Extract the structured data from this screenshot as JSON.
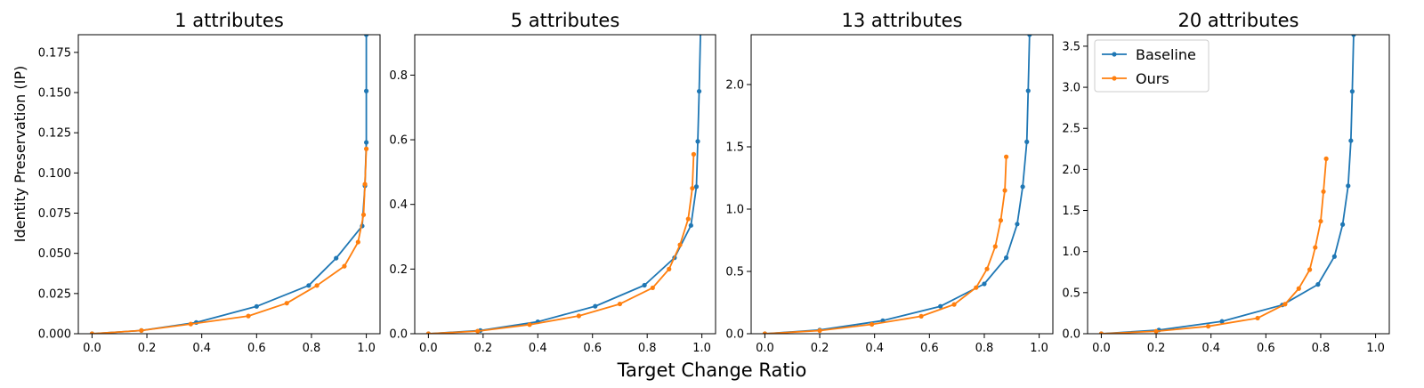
{
  "figure": {
    "xlabel": "Target Change Ratio",
    "ylabel": "Identity Preservation (IP)"
  },
  "colors": {
    "baseline": "#1f77b4",
    "ours": "#ff7f0e"
  },
  "chart_data": [
    {
      "type": "line",
      "title": "1 attributes",
      "xlim": [
        -0.05,
        1.05
      ],
      "ylim": [
        0,
        0.186
      ],
      "xticks": [
        "0.0",
        "0.2",
        "0.4",
        "0.6",
        "0.8",
        "1.0"
      ],
      "yticks": [
        "0.000",
        "0.025",
        "0.050",
        "0.075",
        "0.100",
        "0.125",
        "0.150",
        "0.175"
      ],
      "grid": false,
      "legend": "",
      "series": [
        {
          "name": "Baseline",
          "color": "#1f77b4",
          "x": [
            0.0,
            0.18,
            0.38,
            0.6,
            0.79,
            0.89,
            0.985,
            0.995,
            1.0,
            1.0,
            1.0,
            1.0
          ],
          "y": [
            0.0,
            0.002,
            0.007,
            0.017,
            0.03,
            0.047,
            0.067,
            0.092,
            0.119,
            0.151,
            0.186,
            0.19
          ]
        },
        {
          "name": "Ours",
          "color": "#ff7f0e",
          "x": [
            0.0,
            0.18,
            0.36,
            0.57,
            0.71,
            0.82,
            0.92,
            0.97,
            0.99,
            0.995,
            1.0
          ],
          "y": [
            0.0,
            0.002,
            0.006,
            0.011,
            0.019,
            0.03,
            0.042,
            0.057,
            0.074,
            0.093,
            0.115
          ]
        }
      ]
    },
    {
      "type": "line",
      "title": "5 attributes",
      "xlim": [
        -0.05,
        1.05
      ],
      "ylim": [
        0,
        0.925
      ],
      "xticks": [
        "0.0",
        "0.2",
        "0.4",
        "0.6",
        "0.8",
        "1.0"
      ],
      "yticks": [
        "0.0",
        "0.2",
        "0.4",
        "0.6",
        "0.8"
      ],
      "grid": false,
      "legend": "",
      "series": [
        {
          "name": "Baseline",
          "color": "#1f77b4",
          "x": [
            0.0,
            0.19,
            0.4,
            0.61,
            0.79,
            0.9,
            0.96,
            0.98,
            0.985,
            0.99,
            0.995
          ],
          "y": [
            0.0,
            0.01,
            0.037,
            0.085,
            0.15,
            0.235,
            0.335,
            0.455,
            0.595,
            0.75,
            0.93
          ]
        },
        {
          "name": "Ours",
          "color": "#ff7f0e",
          "x": [
            0.0,
            0.18,
            0.37,
            0.55,
            0.7,
            0.82,
            0.88,
            0.92,
            0.95,
            0.965,
            0.97
          ],
          "y": [
            0.0,
            0.008,
            0.028,
            0.055,
            0.092,
            0.142,
            0.2,
            0.275,
            0.355,
            0.45,
            0.555
          ]
        }
      ]
    },
    {
      "type": "line",
      "title": "13 attributes",
      "xlim": [
        -0.05,
        1.05
      ],
      "ylim": [
        0,
        2.4
      ],
      "xticks": [
        "0.0",
        "0.2",
        "0.4",
        "0.6",
        "0.8",
        "1.0"
      ],
      "yticks": [
        "0.0",
        "0.5",
        "1.0",
        "1.5",
        "2.0"
      ],
      "grid": false,
      "legend": "",
      "series": [
        {
          "name": "Baseline",
          "color": "#1f77b4",
          "x": [
            0.0,
            0.2,
            0.43,
            0.64,
            0.8,
            0.88,
            0.92,
            0.94,
            0.955,
            0.96,
            0.965
          ],
          "y": [
            0.0,
            0.03,
            0.105,
            0.22,
            0.4,
            0.61,
            0.88,
            1.18,
            1.54,
            1.95,
            2.4
          ]
        },
        {
          "name": "Ours",
          "color": "#ff7f0e",
          "x": [
            0.0,
            0.2,
            0.39,
            0.57,
            0.69,
            0.77,
            0.81,
            0.84,
            0.86,
            0.875,
            0.88
          ],
          "y": [
            0.0,
            0.025,
            0.075,
            0.14,
            0.235,
            0.37,
            0.52,
            0.7,
            0.91,
            1.15,
            1.42
          ]
        }
      ]
    },
    {
      "type": "line",
      "title": "20 attributes",
      "xlim": [
        -0.05,
        1.05
      ],
      "ylim": [
        0,
        3.64
      ],
      "xticks": [
        "0.0",
        "0.2",
        "0.4",
        "0.6",
        "0.8",
        "1.0"
      ],
      "yticks": [
        "0.0",
        "0.5",
        "1.0",
        "1.5",
        "2.0",
        "2.5",
        "3.0",
        "3.5"
      ],
      "grid": false,
      "legend": "upper left",
      "series": [
        {
          "name": "Baseline",
          "color": "#1f77b4",
          "x": [
            0.0,
            0.21,
            0.44,
            0.66,
            0.79,
            0.85,
            0.88,
            0.9,
            0.91,
            0.915,
            0.92
          ],
          "y": [
            0.0,
            0.045,
            0.15,
            0.35,
            0.6,
            0.94,
            1.33,
            1.8,
            2.35,
            2.95,
            3.64
          ]
        },
        {
          "name": "Ours",
          "color": "#ff7f0e",
          "x": [
            0.0,
            0.2,
            0.39,
            0.57,
            0.67,
            0.72,
            0.76,
            0.78,
            0.8,
            0.81,
            0.82
          ],
          "y": [
            0.0,
            0.03,
            0.09,
            0.19,
            0.36,
            0.55,
            0.78,
            1.05,
            1.37,
            1.73,
            2.13
          ]
        }
      ]
    }
  ]
}
